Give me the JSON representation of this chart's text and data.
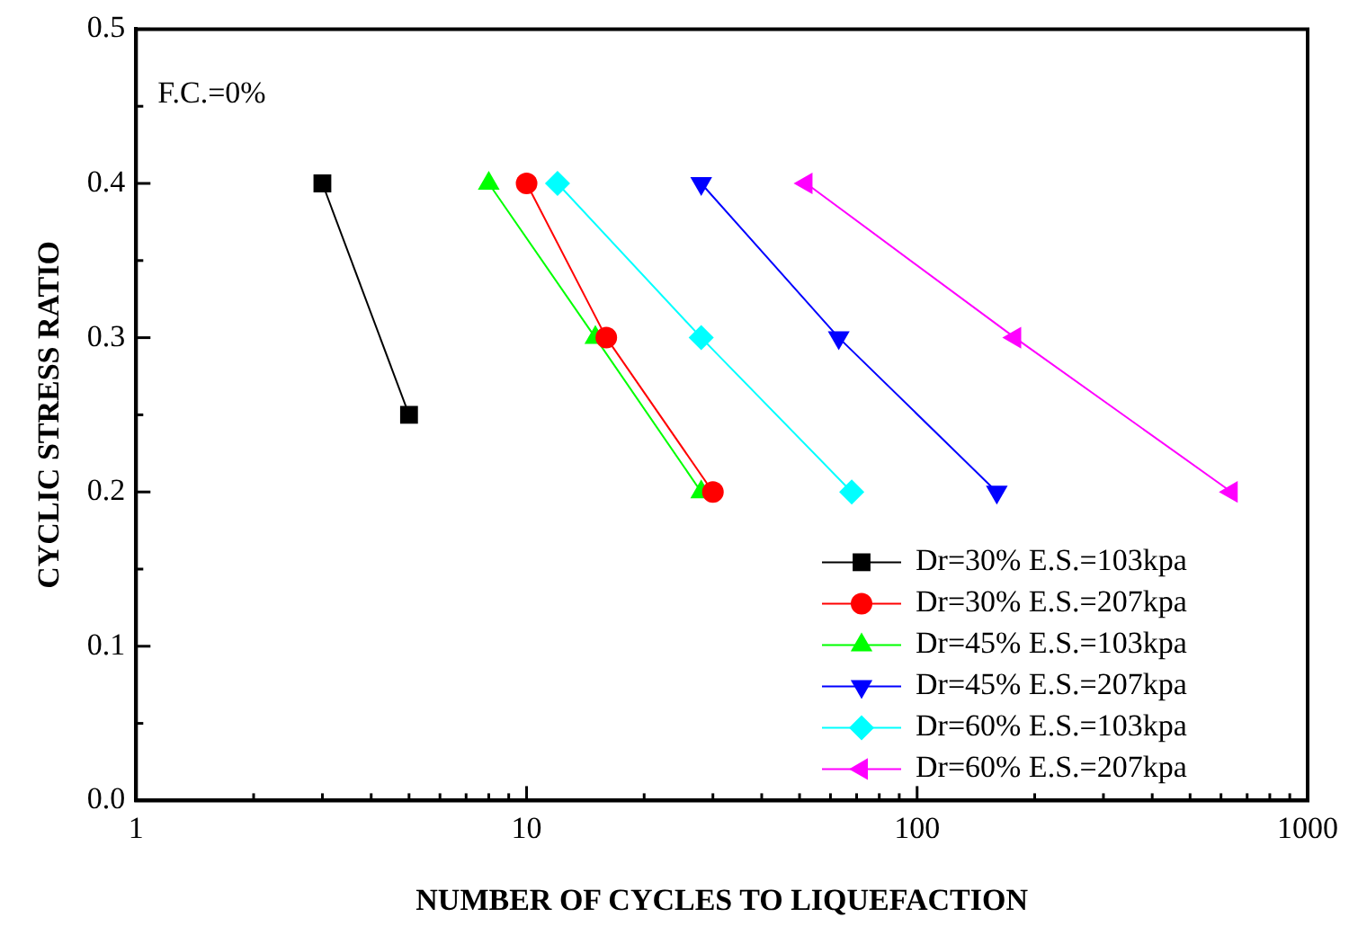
{
  "chart_data": {
    "type": "line",
    "xlabel": "NUMBER OF CYCLES TO LIQUEFACTION",
    "ylabel": "CYCLIC STRESS RATIO",
    "annotations": [
      "F.C.=0%"
    ],
    "log": "x",
    "grid": false,
    "legend": "bottom right",
    "line_style": "solid",
    "xlim": [
      1,
      1000
    ],
    "xticks": [
      1,
      {
        "value": 2,
        "label": null
      },
      {
        "value": 3,
        "label": null
      },
      {
        "value": 4,
        "label": null
      },
      {
        "value": 5,
        "label": null
      },
      {
        "value": 6,
        "label": null
      },
      {
        "value": 7,
        "label": null
      },
      {
        "value": 8,
        "label": null
      },
      {
        "value": 9,
        "label": null
      },
      10,
      {
        "value": 20,
        "label": null
      },
      {
        "value": 30,
        "label": null
      },
      {
        "value": 40,
        "label": null
      },
      {
        "value": 50,
        "label": null
      },
      {
        "value": 60,
        "label": null
      },
      {
        "value": 70,
        "label": null
      },
      {
        "value": 80,
        "label": null
      },
      {
        "value": 90,
        "label": null
      },
      100,
      {
        "value": 200,
        "label": null
      },
      {
        "value": 300,
        "label": null
      },
      {
        "value": 400,
        "label": null
      },
      {
        "value": 500,
        "label": null
      },
      {
        "value": 600,
        "label": null
      },
      {
        "value": 700,
        "label": null
      },
      {
        "value": 800,
        "label": null
      },
      {
        "value": 900,
        "label": null
      },
      1000
    ],
    "ylim": [
      0,
      0.5
    ],
    "yticks": [
      {
        "value": 0,
        "label": "0.0"
      },
      {
        "value": 0.05,
        "label": null
      },
      0.1,
      {
        "value": 0.15,
        "label": null
      },
      0.2,
      {
        "value": 0.25,
        "label": null
      },
      0.3,
      {
        "value": 0.35,
        "label": null
      },
      0.4,
      {
        "value": 0.45,
        "label": null
      },
      0.5
    ],
    "series": [
      {
        "name": "Dr=30% E.S.=103kpa",
        "color": "#000000",
        "marker": "square",
        "x": [
          3,
          5
        ],
        "values": [
          0.4,
          0.25
        ]
      },
      {
        "name": "Dr=30% E.S.=207kpa",
        "color": "#ff0000",
        "marker": "circle",
        "x": [
          10,
          16,
          30
        ],
        "values": [
          0.4,
          0.3,
          0.2
        ]
      },
      {
        "name": "Dr=45% E.S.=103kpa",
        "color": "#00ff00",
        "marker": "triangle",
        "x": [
          8,
          15,
          28
        ],
        "values": [
          0.4,
          0.3,
          0.2
        ]
      },
      {
        "name": "Dr=45% E.S.=207kpa",
        "color": "#0000ff",
        "marker": "triangle-down",
        "x": [
          28,
          63,
          160
        ],
        "values": [
          0.4,
          0.3,
          0.2
        ]
      },
      {
        "name": "Dr=60% E.S.=103kpa",
        "color": "#00ffff",
        "marker": "diamond",
        "x": [
          12,
          28,
          68
        ],
        "values": [
          0.4,
          0.3,
          0.2
        ]
      },
      {
        "name": "Dr=60% E.S.=207kpa",
        "color": "#ff00ff",
        "marker": "triangle-left",
        "x": [
          52,
          178,
          638
        ],
        "values": [
          0.4,
          0.3,
          0.2
        ]
      }
    ]
  }
}
